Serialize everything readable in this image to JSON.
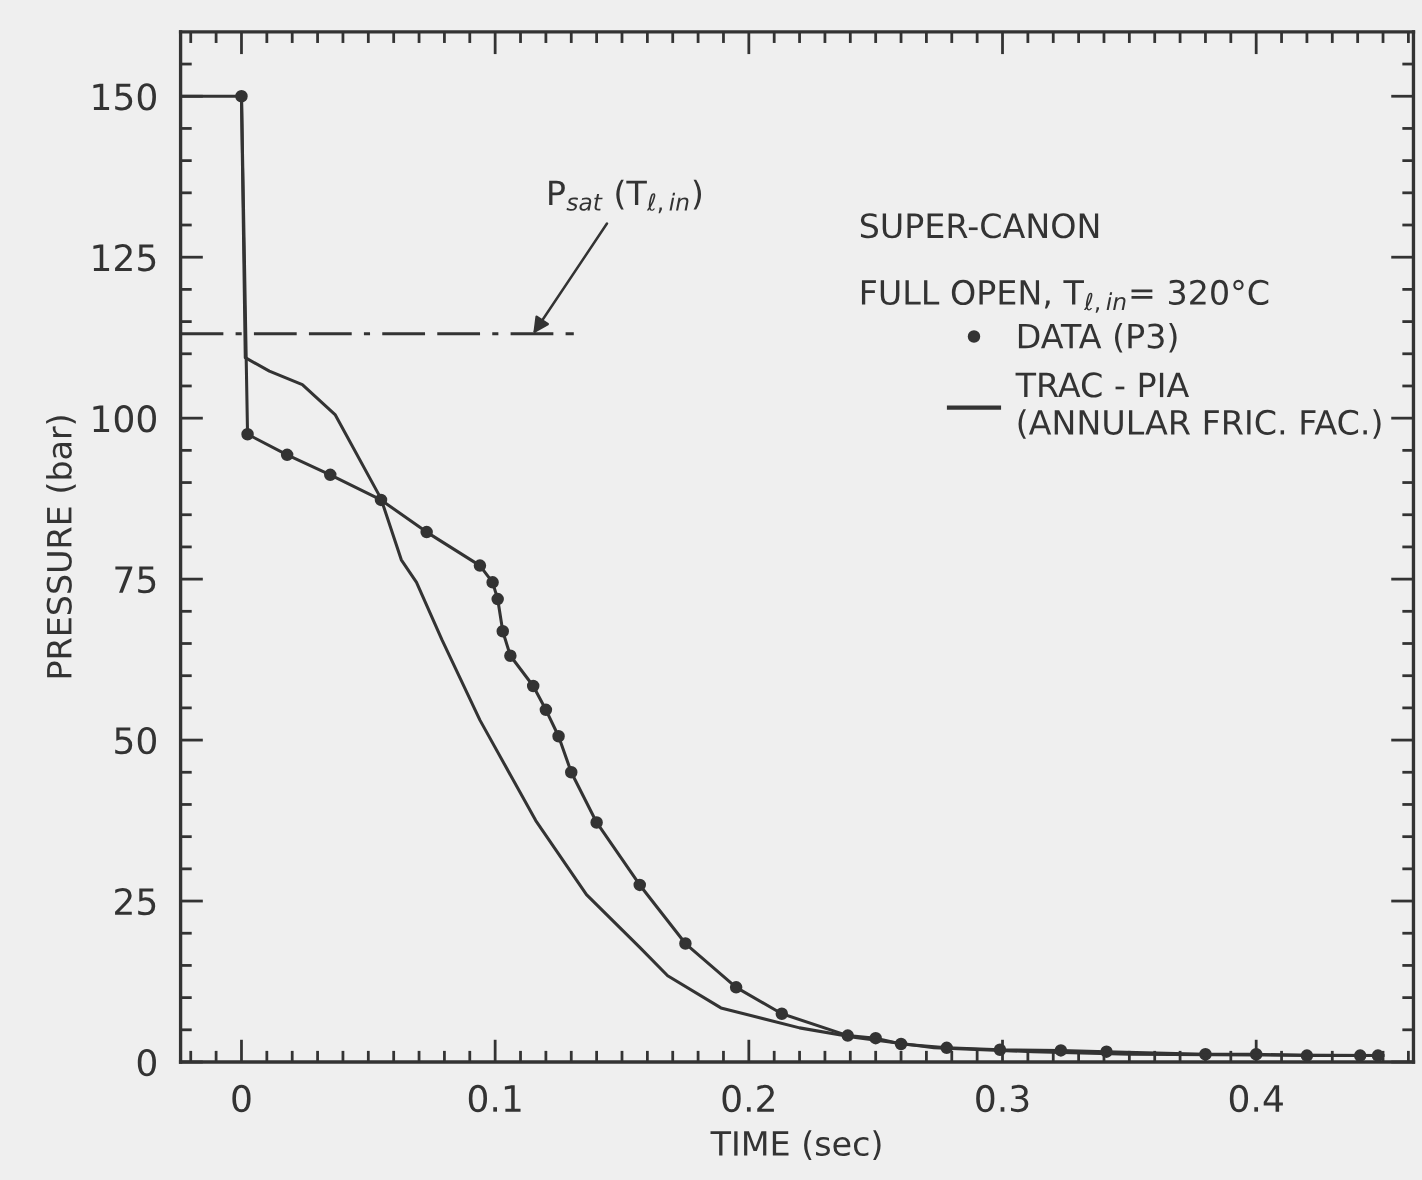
{
  "chart_data": {
    "type": "line",
    "xlabel": "TIME (sec)",
    "ylabel": "PRESSURE (bar)",
    "xlim": [
      -0.024,
      0.462
    ],
    "ylim": [
      0,
      160
    ],
    "xticks": [
      {
        "value": -0.02,
        "label": null
      },
      {
        "value": -0.01,
        "label": null
      },
      {
        "value": 0,
        "label": "0"
      },
      {
        "value": 0.01,
        "label": null
      },
      {
        "value": 0.02,
        "label": null
      },
      {
        "value": 0.03,
        "label": null
      },
      {
        "value": 0.04,
        "label": null
      },
      {
        "value": 0.05,
        "label": null
      },
      {
        "value": 0.06,
        "label": null
      },
      {
        "value": 0.07,
        "label": null
      },
      {
        "value": 0.08,
        "label": null
      },
      {
        "value": 0.09,
        "label": null
      },
      {
        "value": 0.1,
        "label": "0.1"
      },
      {
        "value": 0.11,
        "label": null
      },
      {
        "value": 0.12,
        "label": null
      },
      {
        "value": 0.13,
        "label": null
      },
      {
        "value": 0.14,
        "label": null
      },
      {
        "value": 0.15,
        "label": null
      },
      {
        "value": 0.16,
        "label": null
      },
      {
        "value": 0.17,
        "label": null
      },
      {
        "value": 0.18,
        "label": null
      },
      {
        "value": 0.19,
        "label": null
      },
      {
        "value": 0.2,
        "label": "0.2"
      },
      {
        "value": 0.21,
        "label": null
      },
      {
        "value": 0.22,
        "label": null
      },
      {
        "value": 0.23,
        "label": null
      },
      {
        "value": 0.24,
        "label": null
      },
      {
        "value": 0.25,
        "label": null
      },
      {
        "value": 0.26,
        "label": null
      },
      {
        "value": 0.27,
        "label": null
      },
      {
        "value": 0.28,
        "label": null
      },
      {
        "value": 0.29,
        "label": null
      },
      {
        "value": 0.3,
        "label": "0.3"
      },
      {
        "value": 0.31,
        "label": null
      },
      {
        "value": 0.32,
        "label": null
      },
      {
        "value": 0.33,
        "label": null
      },
      {
        "value": 0.34,
        "label": null
      },
      {
        "value": 0.35,
        "label": null
      },
      {
        "value": 0.36,
        "label": null
      },
      {
        "value": 0.37,
        "label": null
      },
      {
        "value": 0.38,
        "label": null
      },
      {
        "value": 0.39,
        "label": null
      },
      {
        "value": 0.4,
        "label": "0.4"
      },
      {
        "value": 0.41,
        "label": null
      },
      {
        "value": 0.42,
        "label": null
      },
      {
        "value": 0.43,
        "label": null
      },
      {
        "value": 0.44,
        "label": null
      },
      {
        "value": 0.45,
        "label": null
      },
      {
        "value": 0.46,
        "label": null
      }
    ],
    "yticks": [
      0,
      {
        "value": 5,
        "label": null
      },
      {
        "value": 10,
        "label": null
      },
      {
        "value": 15,
        "label": null
      },
      {
        "value": 20,
        "label": null
      },
      25,
      {
        "value": 30,
        "label": null
      },
      {
        "value": 35,
        "label": null
      },
      {
        "value": 40,
        "label": null
      },
      {
        "value": 45,
        "label": null
      },
      50,
      {
        "value": 55,
        "label": null
      },
      {
        "value": 60,
        "label": null
      },
      {
        "value": 65,
        "label": null
      },
      {
        "value": 70,
        "label": null
      },
      75,
      {
        "value": 80,
        "label": null
      },
      {
        "value": 85,
        "label": null
      },
      {
        "value": 90,
        "label": null
      },
      {
        "value": 95,
        "label": null
      },
      100,
      {
        "value": 105,
        "label": null
      },
      {
        "value": 110,
        "label": null
      },
      {
        "value": 115,
        "label": null
      },
      {
        "value": 120,
        "label": null
      },
      125,
      {
        "value": 130,
        "label": null
      },
      {
        "value": 135,
        "label": null
      },
      {
        "value": 140,
        "label": null
      },
      {
        "value": 145,
        "label": null
      },
      150,
      {
        "value": 155,
        "label": null
      }
    ],
    "grid": false,
    "legend": "right",
    "series": [
      {
        "name": "DATA (P3)",
        "color": "#333333",
        "marker": "circle",
        "line_style": "solid",
        "x": [
          0,
          0.0024,
          0.018,
          0.035,
          0.055,
          0.073,
          0.094,
          0.099,
          0.101,
          0.103,
          0.106,
          0.115,
          0.12,
          0.125,
          0.13,
          0.14,
          0.157,
          0.175,
          0.195,
          0.213,
          0.239,
          0.25,
          0.26,
          0.278,
          0.299,
          0.323,
          0.341,
          0.38,
          0.4,
          0.42,
          0.441,
          0.448
        ],
        "values": [
          150,
          97.5,
          94.3,
          91.2,
          87.3,
          82.3,
          77.1,
          74.5,
          71.9,
          66.9,
          63.1,
          58.4,
          54.7,
          50.6,
          45,
          37.2,
          27.5,
          18.4,
          11.6,
          7.5,
          4.1,
          3.7,
          2.8,
          2.2,
          1.9,
          1.8,
          1.6,
          1.2,
          1.2,
          1,
          1,
          1
        ]
      },
      {
        "name": "TRAC - PIA\n(ANNULAR FRIC. FAC.)",
        "color": "#333333",
        "marker": "none",
        "line_style": "solid",
        "x": [
          -0.024,
          0,
          0.0015,
          0.011,
          0.024,
          0.037,
          0.055,
          0.063,
          0.069,
          0.079,
          0.094,
          0.116,
          0.136,
          0.157,
          0.168,
          0.189,
          0.22,
          0.242,
          0.273,
          0.312,
          0.35,
          0.4,
          0.45
        ],
        "values": [
          150,
          150,
          109.4,
          107.3,
          105.2,
          100.5,
          87.5,
          78,
          74.5,
          65.6,
          53.1,
          37.5,
          26,
          17.8,
          13.4,
          8.4,
          5.3,
          3.8,
          2.2,
          1.6,
          1.2,
          1.1,
          1
        ]
      },
      {
        "color": "#333333",
        "marker": "none",
        "line_style": "dashed",
        "x": [
          -0.024,
          0.131
        ],
        "values": [
          113.1,
          113.1
        ]
      }
    ],
    "annotations": [
      {
        "text": "P$_{sat}$ (T$_{ℓ,in}$)",
        "x": 0.115,
        "y": 113.1
      },
      "SUPER-CANON",
      "FULL OPEN, T$_{ℓ,in}$= 320°C"
    ]
  }
}
